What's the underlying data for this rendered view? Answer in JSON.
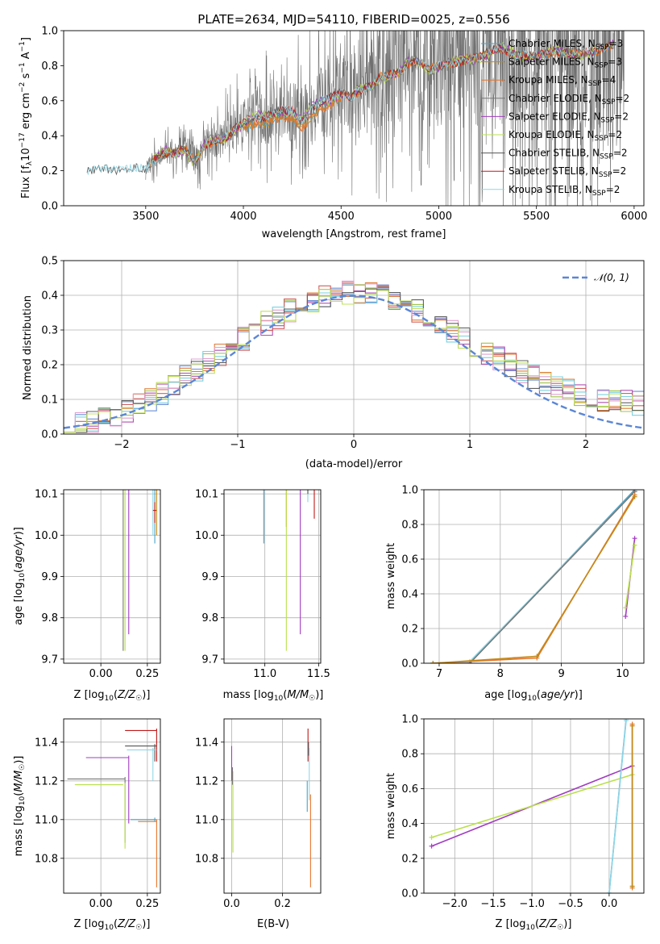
{
  "colors": {
    "c_miles": "#4aa3c8",
    "s_miles": "#c28a1a",
    "k_miles": "#e8742a",
    "c_elodie": "#777777",
    "s_elodie": "#a23cc0",
    "k_elodie": "#b9e04c",
    "c_stelib": "#555555",
    "s_stelib": "#c01818",
    "k_stelib": "#8fd6e6",
    "normal": "#5b86d6",
    "grid": "#b0b0b0",
    "hist": [
      "#6a8fd8",
      "#e07b3a",
      "#a0c44a",
      "#b050b0",
      "#d06060",
      "#7ad0e0",
      "#e0a0d0",
      "#606060",
      "#c0e060"
    ]
  },
  "chart_data": [
    {
      "type": "line",
      "title": "PLATE=2634, MJD=54110, FIBERID=0025, z=0.556",
      "xlabel": "wavelength [Angstrom, rest frame]",
      "ylabel_parts": [
        "Flux [f",
        "λ",
        "10",
        "−17",
        " erg cm",
        "−2",
        " s",
        "−1",
        " A",
        "−1",
        "]"
      ],
      "xlim": [
        3080,
        6050
      ],
      "ylim": [
        0,
        1
      ],
      "xticks": [
        "3500",
        "4000",
        "4500",
        "5000",
        "5500",
        "6000"
      ],
      "yticks": [
        "0.0",
        "0.2",
        "0.4",
        "0.6",
        "0.8",
        "1.0"
      ],
      "legend_loc": "upper right",
      "legend": [
        {
          "prefix": "Chabrier MILES, N",
          "sub": "SSP",
          "suffix": "=3",
          "color": "c_miles"
        },
        {
          "prefix": "Salpeter MILES, N",
          "sub": "SSP",
          "suffix": "=3",
          "color": "s_miles"
        },
        {
          "prefix": "Kroupa MILES, N",
          "sub": "SSP",
          "suffix": "=4",
          "color": "k_miles"
        },
        {
          "prefix": "Chabrier ELODIE, N",
          "sub": "SSP",
          "suffix": "=2",
          "color": "c_elodie"
        },
        {
          "prefix": "Salpeter ELODIE, N",
          "sub": "SSP",
          "suffix": "=2",
          "color": "s_elodie"
        },
        {
          "prefix": "Kroupa ELODIE, N",
          "sub": "SSP",
          "suffix": "=2",
          "color": "k_elodie"
        },
        {
          "prefix": "Chabrier STELIB, N",
          "sub": "SSP",
          "suffix": "=2",
          "color": "c_stelib"
        },
        {
          "prefix": "Salpeter STELIB, N",
          "sub": "SSP",
          "suffix": "=2",
          "color": "s_stelib"
        },
        {
          "prefix": "Kroupa STELIB, N",
          "sub": "SSP",
          "suffix": "=2",
          "color": "k_stelib"
        }
      ],
      "model_x": [
        3200,
        3250,
        3300,
        3350,
        3400,
        3450,
        3500,
        3550,
        3600,
        3650,
        3700,
        3750,
        3800,
        3850,
        3900,
        3950,
        4000,
        4050,
        4100,
        4150,
        4200,
        4250,
        4300,
        4350,
        4400,
        4450,
        4500,
        4550,
        4600,
        4650,
        4700,
        4750,
        4800,
        4850,
        4900,
        4950,
        5000,
        5100,
        5200,
        5300,
        5400,
        5500,
        5600,
        5700,
        5800,
        5900
      ],
      "model_y": [
        0.2,
        0.21,
        0.21,
        0.2,
        0.21,
        0.22,
        0.21,
        0.27,
        0.3,
        0.3,
        0.33,
        0.25,
        0.34,
        0.37,
        0.38,
        0.43,
        0.48,
        0.5,
        0.5,
        0.53,
        0.55,
        0.54,
        0.48,
        0.55,
        0.6,
        0.62,
        0.65,
        0.62,
        0.66,
        0.68,
        0.74,
        0.75,
        0.76,
        0.82,
        0.82,
        0.78,
        0.8,
        0.82,
        0.85,
        0.9,
        0.86,
        0.86,
        0.88,
        0.87,
        0.88,
        0.92
      ]
    },
    {
      "type": "histogram",
      "xlabel": "(data-model)/error",
      "ylabel": "Normed distribution",
      "xlim": [
        -2.5,
        2.5
      ],
      "ylim": [
        0,
        0.5
      ],
      "xticks": [
        "−2",
        "−1",
        "0",
        "1",
        "2"
      ],
      "yticks": [
        "0.0",
        "0.1",
        "0.2",
        "0.3",
        "0.4",
        "0.5"
      ],
      "bin_width": 0.1,
      "bin_start": -2.5,
      "legend": "𝒩(0, 1)",
      "legend_loc": "upper right",
      "reference_curve": "normal(0,1) density"
    },
    {
      "type": "scatter",
      "xlabel": "Z [log10(Z/Z☉)]",
      "ylabel": "age  [log10(age/yr)]",
      "xlim": [
        -0.2,
        0.32
      ],
      "ylim": [
        9.69,
        10.11
      ],
      "xticks": [
        "0.00",
        "0.25"
      ],
      "yticks": [
        "9.7",
        "9.8",
        "9.9",
        "10.0",
        "10.1"
      ]
    },
    {
      "type": "scatter",
      "xlabel": "mass [log10(M/M☉)]",
      "ylabel": "",
      "xlim": [
        10.62,
        11.52
      ],
      "ylim": [
        9.69,
        10.11
      ],
      "xticks": [
        "11.0",
        "11.5"
      ],
      "yticks": [
        "9.7",
        "9.8",
        "9.9",
        "10.0",
        "10.1"
      ]
    },
    {
      "type": "line",
      "xlabel": "age  [log10(age/yr)]",
      "ylabel": "mass weight",
      "xlim": [
        6.75,
        10.35
      ],
      "ylim": [
        0,
        1
      ],
      "xticks": [
        "7",
        "8",
        "9",
        "10"
      ],
      "yticks": [
        "0.0",
        "0.2",
        "0.4",
        "0.6",
        "0.8",
        "1.0"
      ],
      "series": [
        {
          "color": "c_miles",
          "x": [
            6.9,
            7.5,
            10.2
          ],
          "y": [
            0.0,
            0.0,
            1.0
          ]
        },
        {
          "color": "k_stelib",
          "x": [
            6.9,
            7.5,
            10.2
          ],
          "y": [
            0.0,
            0.01,
            0.99
          ]
        },
        {
          "color": "c_elodie",
          "x": [
            7.5,
            10.2
          ],
          "y": [
            0.0,
            0.99
          ]
        },
        {
          "color": "k_miles",
          "x": [
            6.9,
            8.6,
            10.2
          ],
          "y": [
            0.0,
            0.03,
            0.97
          ]
        },
        {
          "color": "s_miles",
          "x": [
            6.9,
            8.6,
            10.2
          ],
          "y": [
            0.0,
            0.04,
            0.96
          ]
        },
        {
          "color": "s_elodie",
          "x": [
            10.05,
            10.2
          ],
          "y": [
            0.27,
            0.72
          ]
        },
        {
          "color": "k_elodie",
          "x": [
            10.05,
            10.2
          ],
          "y": [
            0.32,
            0.68
          ]
        }
      ]
    },
    {
      "type": "scatter",
      "xlabel": "Z [log10(Z/Z☉)]",
      "ylabel": "mass [log10(M/M☉)]",
      "xlim": [
        -0.2,
        0.32
      ],
      "ylim": [
        10.62,
        11.52
      ],
      "xticks": [
        "0.00",
        "0.25"
      ],
      "yticks": [
        "10.8",
        "11.0",
        "11.2",
        "11.4"
      ]
    },
    {
      "type": "scatter",
      "xlabel": "E(B-V)",
      "ylabel": "",
      "xlim": [
        -0.03,
        0.35
      ],
      "ylim": [
        10.62,
        11.52
      ],
      "xticks": [
        "0.0",
        "0.2"
      ],
      "yticks": [
        "10.8",
        "11.0",
        "11.2",
        "11.4"
      ]
    },
    {
      "type": "line",
      "xlabel": "Z [log10(Z/Z☉)]",
      "ylabel": "mass weight",
      "xlim": [
        -2.4,
        0.45
      ],
      "ylim": [
        0,
        1
      ],
      "xticks": [
        "−2.0",
        "−1.5",
        "−1.0",
        "−0.5",
        "0.0"
      ],
      "yticks": [
        "0.0",
        "0.2",
        "0.4",
        "0.6",
        "0.8",
        "1.0"
      ],
      "series": [
        {
          "color": "s_elodie",
          "x": [
            -2.3,
            0.3
          ],
          "y": [
            0.27,
            0.73
          ]
        },
        {
          "color": "k_elodie",
          "x": [
            -2.3,
            0.3
          ],
          "y": [
            0.32,
            0.68
          ]
        },
        {
          "color": "c_miles",
          "x": [
            0.0,
            0.22
          ],
          "y": [
            0.0,
            1.0
          ]
        },
        {
          "color": "k_stelib",
          "x": [
            0.0,
            0.22
          ],
          "y": [
            0.0,
            0.99
          ]
        },
        {
          "color": "k_miles",
          "x": [
            0.3,
            0.3
          ],
          "y": [
            0.03,
            0.97
          ]
        },
        {
          "color": "s_miles",
          "x": [
            0.3,
            0.3
          ],
          "y": [
            0.04,
            0.96
          ]
        }
      ]
    }
  ]
}
